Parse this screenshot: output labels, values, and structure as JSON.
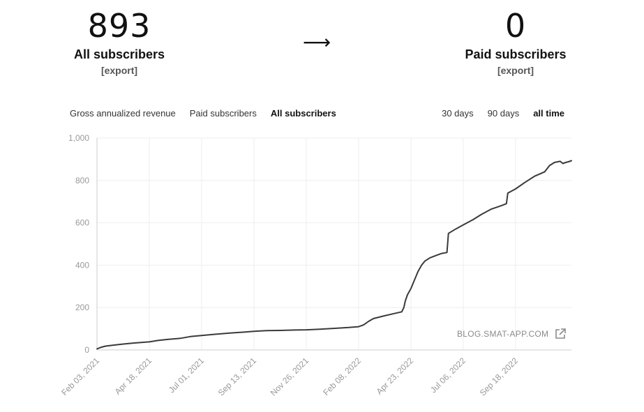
{
  "stats": {
    "left": {
      "value": "893",
      "label": "All subscribers",
      "export": "[export]"
    },
    "arrow": "⟶",
    "right": {
      "value": "0",
      "label": "Paid subscribers",
      "export": "[export]"
    }
  },
  "tabs": {
    "items": [
      "Gross annualized revenue",
      "Paid subscribers",
      "All subscribers"
    ],
    "active": "All subscribers"
  },
  "ranges": {
    "items": [
      "30 days",
      "90 days",
      "all time"
    ],
    "active": "all time"
  },
  "watermark": "BLOG.SMAT-APP.COM",
  "colors": {
    "line": "#3a3a3a",
    "grid": "#eeeeee",
    "tick_text": "#999999"
  },
  "chart_data": {
    "type": "line",
    "title": "",
    "xlabel": "",
    "ylabel": "",
    "ylim": [
      0,
      1000
    ],
    "y_ticks": [
      0,
      200,
      400,
      600,
      800,
      1000
    ],
    "y_tick_labels": [
      "0",
      "200",
      "400",
      "600",
      "800",
      "1,000"
    ],
    "x_range": [
      "2021-02-03",
      "2022-12-06"
    ],
    "x_ticks": [
      "2021-02-03",
      "2021-04-18",
      "2021-07-01",
      "2021-09-13",
      "2021-11-26",
      "2022-02-08",
      "2022-04-23",
      "2022-07-06",
      "2022-09-18"
    ],
    "x_tick_labels": [
      "Feb 03, 2021",
      "Apr 18, 2021",
      "Jul 01, 2021",
      "Sep 13, 2021",
      "Nov 26, 2021",
      "Feb 08, 2022",
      "Apr 23, 2022",
      "Jul 06, 2022",
      "Sep 18, 2022"
    ],
    "grid": true,
    "series": [
      {
        "x": [
          "2021-02-03",
          "2021-02-08",
          "2021-02-15",
          "2021-02-25",
          "2021-03-10",
          "2021-03-25",
          "2021-04-05",
          "2021-04-18",
          "2021-05-01",
          "2021-05-15",
          "2021-06-01",
          "2021-06-15",
          "2021-07-01",
          "2021-07-20",
          "2021-08-10",
          "2021-09-01",
          "2021-09-13",
          "2021-10-01",
          "2021-10-20",
          "2021-11-10",
          "2021-11-26",
          "2021-12-15",
          "2022-01-05",
          "2022-01-25",
          "2022-02-08",
          "2022-02-15",
          "2022-02-22",
          "2022-03-01",
          "2022-03-15",
          "2022-03-28",
          "2022-04-10",
          "2022-04-13",
          "2022-04-15",
          "2022-04-18",
          "2022-04-23",
          "2022-04-28",
          "2022-05-03",
          "2022-05-08",
          "2022-05-13",
          "2022-05-20",
          "2022-05-28",
          "2022-06-05",
          "2022-06-13",
          "2022-06-15",
          "2022-06-25",
          "2022-07-06",
          "2022-07-20",
          "2022-08-01",
          "2022-08-15",
          "2022-08-28",
          "2022-09-05",
          "2022-09-07",
          "2022-09-18",
          "2022-10-01",
          "2022-10-15",
          "2022-10-29",
          "2022-11-05",
          "2022-11-12",
          "2022-11-20",
          "2022-11-24",
          "2022-11-28",
          "2022-12-02",
          "2022-12-06"
        ],
        "y": [
          5,
          12,
          18,
          22,
          27,
          32,
          35,
          38,
          45,
          50,
          55,
          63,
          68,
          74,
          80,
          85,
          88,
          91,
          92,
          94,
          95,
          98,
          102,
          106,
          110,
          118,
          135,
          148,
          160,
          170,
          180,
          200,
          230,
          260,
          290,
          330,
          370,
          400,
          420,
          435,
          445,
          455,
          460,
          550,
          570,
          590,
          615,
          640,
          665,
          680,
          690,
          740,
          760,
          790,
          820,
          840,
          870,
          885,
          890,
          880,
          885,
          888,
          893
        ]
      }
    ]
  }
}
